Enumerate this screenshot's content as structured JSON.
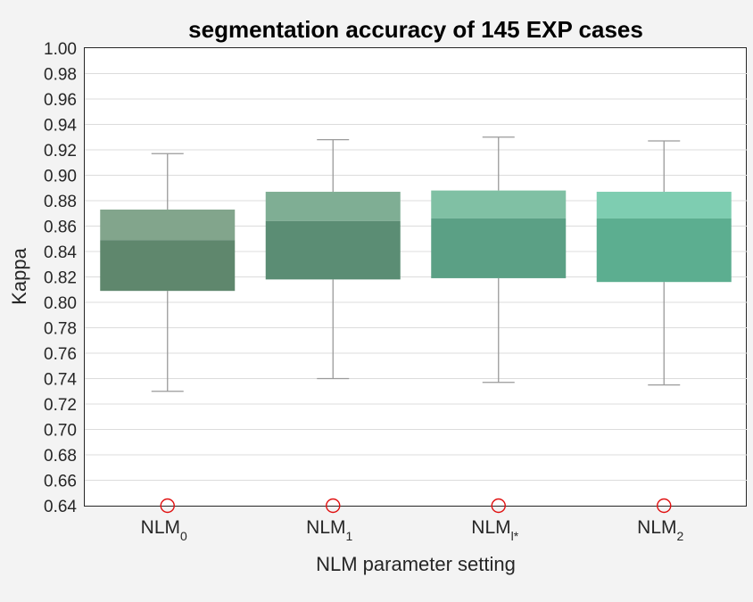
{
  "chart_data": {
    "type": "box",
    "title": "segmentation accuracy of 145 EXP cases",
    "xlabel": "NLM parameter setting",
    "ylabel": "Kappa",
    "ylim": [
      0.64,
      1.0
    ],
    "yticks": [
      "0.64",
      "0.66",
      "0.68",
      "0.70",
      "0.72",
      "0.74",
      "0.76",
      "0.78",
      "0.80",
      "0.82",
      "0.84",
      "0.86",
      "0.88",
      "0.90",
      "0.92",
      "0.94",
      "0.96",
      "0.98",
      "1.00"
    ],
    "grid": true,
    "categories": [
      {
        "base": "NLM",
        "sub": "0"
      },
      {
        "base": "NLM",
        "sub": "1"
      },
      {
        "base": "NLM",
        "sub": "l*"
      },
      {
        "base": "NLM",
        "sub": "2"
      }
    ],
    "boxes": [
      {
        "whisker_low": 0.73,
        "q1": 0.809,
        "median": 0.849,
        "q3": 0.873,
        "whisker_high": 0.917,
        "outliers": [
          0.64
        ],
        "color_upper": "#82a58c",
        "color_lower": "#5f876d"
      },
      {
        "whisker_low": 0.74,
        "q1": 0.818,
        "median": 0.864,
        "q3": 0.887,
        "whisker_high": 0.928,
        "outliers": [
          0.64
        ],
        "color_upper": "#7fae94",
        "color_lower": "#5b8d74"
      },
      {
        "whisker_low": 0.737,
        "q1": 0.819,
        "median": 0.866,
        "q3": 0.888,
        "whisker_high": 0.93,
        "outliers": [
          0.64
        ],
        "color_upper": "#80c0a4",
        "color_lower": "#5ba085"
      },
      {
        "whisker_low": 0.735,
        "q1": 0.816,
        "median": 0.866,
        "q3": 0.887,
        "whisker_high": 0.927,
        "outliers": [
          0.64
        ],
        "color_upper": "#7ecdb1",
        "color_lower": "#5cae90"
      }
    ]
  }
}
